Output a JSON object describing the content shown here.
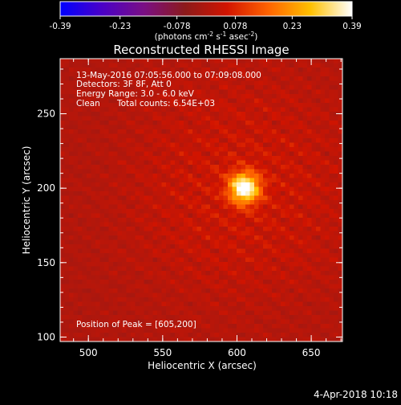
{
  "colorbar": {
    "ticks": [
      "-0.39",
      "-0.23",
      "-0.078",
      "0.078",
      "0.23",
      "0.39"
    ],
    "tick_values": [
      -0.39,
      -0.23,
      -0.078,
      0.078,
      0.23,
      0.39
    ],
    "units_main": "(photons cm",
    "units_sup1": "-2",
    "units_mid": " s",
    "units_sup2": "-1",
    "units_end": " asec",
    "units_sup3": "-2",
    "units_close": ")",
    "colors": [
      "#0000ff",
      "#4a00c8",
      "#7a0f85",
      "#8c1a1a",
      "#d21400",
      "#ff6400",
      "#ffc000",
      "#ffffff"
    ]
  },
  "chart_data": {
    "type": "heatmap",
    "title": "Reconstructed RHESSI Image",
    "xlabel": "Heliocentric X (arcsec)",
    "ylabel": "Heliocentric Y (arcsec)",
    "xlim": [
      481,
      671
    ],
    "ylim": [
      97,
      287
    ],
    "xticks": [
      500,
      550,
      600,
      650
    ],
    "yticks": [
      100,
      150,
      200,
      250
    ],
    "peak": {
      "x": 605,
      "y": 200,
      "value": 0.39
    },
    "value_range": [
      -0.39,
      0.39
    ]
  },
  "info": {
    "line1": "13-May-2016 07:05:56.000 to 07:09:08.000",
    "line2": "Detectors: 3F 8F, Att 0",
    "line3": "Energy Range: 3.0 - 6.0 keV",
    "line4_a": "Clean",
    "line4_b": "Total counts: 6.54E+03",
    "peak_text": "Position of Peak = [605,200]"
  },
  "footer": {
    "date": "4-Apr-2018 10:18"
  }
}
